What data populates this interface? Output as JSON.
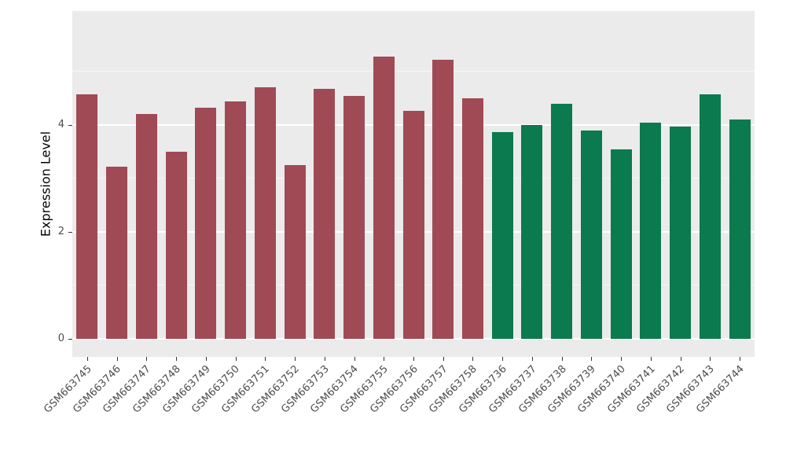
{
  "chart_data": {
    "type": "bar",
    "title": "",
    "xlabel": "",
    "ylabel": "Expression Level",
    "categories": [
      "GSM663745",
      "GSM663746",
      "GSM663747",
      "GSM663748",
      "GSM663749",
      "GSM663750",
      "GSM663751",
      "GSM663752",
      "GSM663753",
      "GSM663754",
      "GSM663755",
      "GSM663756",
      "GSM663757",
      "GSM663758",
      "GSM663736",
      "GSM663737",
      "GSM663738",
      "GSM663739",
      "GSM663740",
      "GSM663741",
      "GSM663742",
      "GSM663743",
      "GSM663744"
    ],
    "values": [
      4.58,
      3.22,
      4.2,
      3.5,
      4.32,
      4.44,
      4.7,
      3.25,
      4.68,
      4.55,
      5.28,
      4.27,
      5.22,
      4.5,
      3.87,
      4.0,
      4.4,
      3.9,
      3.55,
      4.05,
      3.97,
      4.57,
      4.1
    ],
    "groups": [
      {
        "color": "#A04A55",
        "from": 0,
        "to": 13
      },
      {
        "color": "#0B7A4E",
        "from": 14,
        "to": 22
      }
    ],
    "yticks": [
      0,
      2,
      4
    ],
    "minor_ticks": [
      1,
      3,
      5
    ],
    "ylim": [
      0,
      5.9
    ],
    "panel_bg": "#EBEBEB",
    "grid_color": "#FFFFFF",
    "tick_label_color": "#4D4D4D",
    "tick_mark_color": "#333333",
    "legend": "none",
    "grid": "on"
  }
}
